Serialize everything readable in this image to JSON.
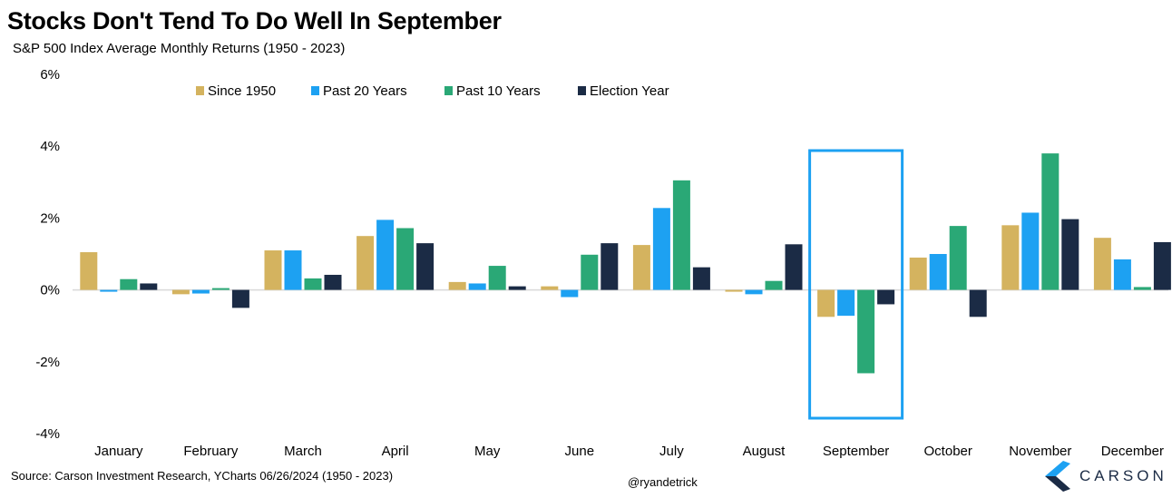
{
  "title": "Stocks Don't Tend To Do Well In September",
  "subtitle": "S&P 500 Index Average Monthly Returns (1950 - 2023)",
  "source": "Source: Carson Investment Research, YCharts 06/26/2024 (1950 - 2023)",
  "handle": "@ryandetrick",
  "logo_text": "CARSON",
  "colors": {
    "since_1950": "#d4b35f",
    "past_20": "#1da1f2",
    "past_10": "#2aa876",
    "election": "#1b2b45",
    "highlight": "#1da1f2"
  },
  "chart_data": {
    "type": "bar",
    "title": "Stocks Don't Tend To Do Well In September",
    "subtitle": "S&P 500 Index Average Monthly Returns (1950 - 2023)",
    "xlabel": "",
    "ylabel": "",
    "ylim": [
      -4,
      6
    ],
    "yticks": [
      6,
      4,
      2,
      0,
      -2,
      -4
    ],
    "ytick_labels": [
      "6%",
      "4%",
      "2%",
      "0%",
      "-2%",
      "-4%"
    ],
    "legend_position": "top-left",
    "highlight_category": "September",
    "categories": [
      "January",
      "February",
      "March",
      "April",
      "May",
      "June",
      "July",
      "August",
      "September",
      "October",
      "November",
      "December"
    ],
    "series": [
      {
        "name": "Since 1950",
        "color_key": "since_1950",
        "values": [
          1.05,
          -0.12,
          1.1,
          1.5,
          0.22,
          0.1,
          1.25,
          -0.05,
          -0.75,
          0.9,
          1.8,
          1.45
        ]
      },
      {
        "name": "Past 20 Years",
        "color_key": "past_20",
        "values": [
          -0.05,
          -0.1,
          1.1,
          1.95,
          0.18,
          -0.2,
          2.28,
          -0.12,
          -0.72,
          1.0,
          2.15,
          0.85
        ]
      },
      {
        "name": "Past 10 Years",
        "color_key": "past_10",
        "values": [
          0.3,
          0.05,
          0.32,
          1.72,
          0.67,
          0.98,
          3.05,
          0.25,
          -2.32,
          1.78,
          3.8,
          0.08
        ]
      },
      {
        "name": "Election Year",
        "color_key": "election",
        "values": [
          0.18,
          -0.5,
          0.42,
          1.3,
          0.1,
          1.3,
          0.63,
          1.27,
          -0.4,
          -0.75,
          1.97,
          1.33
        ]
      }
    ]
  }
}
